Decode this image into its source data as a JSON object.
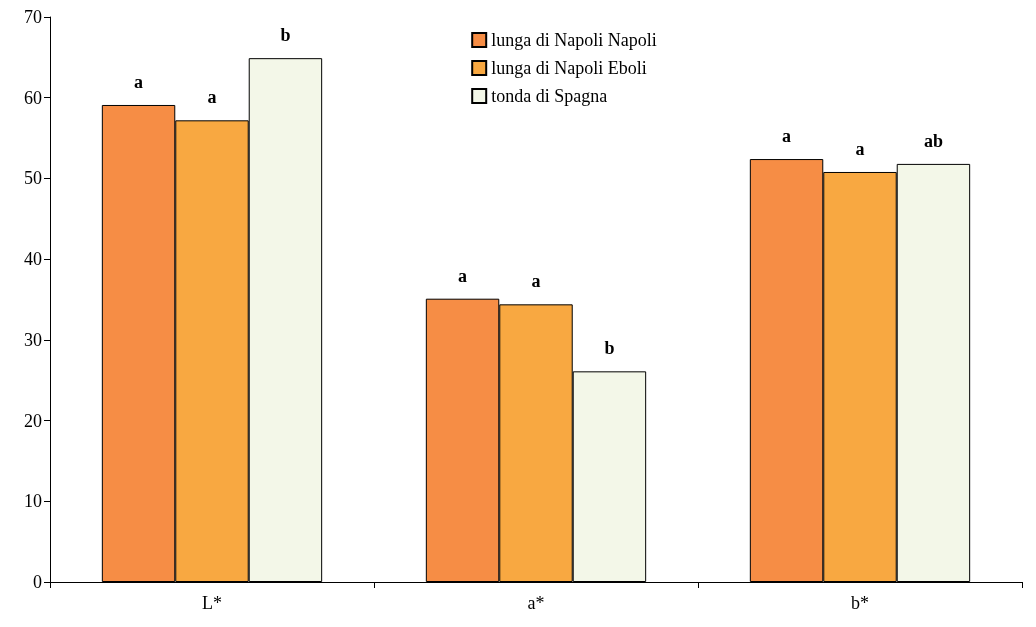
{
  "chart_data": {
    "type": "bar",
    "categories": [
      "L*",
      "a*",
      "b*"
    ],
    "series": [
      {
        "name": "lunga di Napoli Napoli",
        "color": "#f68d45",
        "values": [
          59.1,
          35.1,
          52.4
        ],
        "value_labels": [
          "a",
          "a",
          "a"
        ]
      },
      {
        "name": "lunga di Napoli Eboli",
        "color": "#f8a841",
        "values": [
          57.2,
          34.4,
          50.8
        ],
        "value_labels": [
          "a",
          "a",
          "a"
        ]
      },
      {
        "name": "tonda di Spagna",
        "color": "#f3f7e8",
        "values": [
          64.9,
          26.1,
          51.8
        ],
        "value_labels": [
          "b",
          "b",
          "ab"
        ]
      }
    ],
    "ylim": [
      0,
      70
    ],
    "yticks": [
      0,
      10,
      20,
      30,
      40,
      50,
      60,
      70
    ],
    "grid": false,
    "legend": "top"
  }
}
